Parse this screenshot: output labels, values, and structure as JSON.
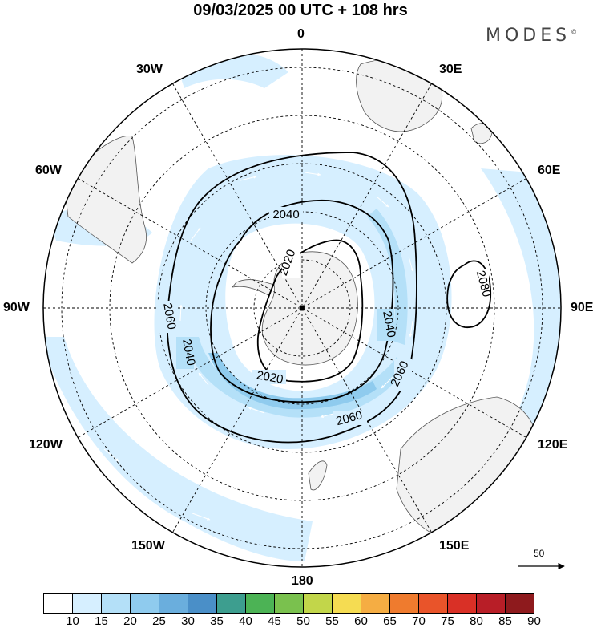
{
  "title": "09/03/2025  00 UTC  + 108 hrs",
  "brand": "MODES",
  "brand_mark": "©",
  "longitude_labels": {
    "lon_0": "0",
    "lon_30e": "30E",
    "lon_60e": "60E",
    "lon_90e": "90E",
    "lon_120e": "120E",
    "lon_150e": "150E",
    "lon_180": "180",
    "lon_150w": "150W",
    "lon_120w": "120W",
    "lon_90w": "90W",
    "lon_60w": "60W",
    "lon_30w": "30W"
  },
  "contour_labels": [
    "2020",
    "2020",
    "2040",
    "2040",
    "2040",
    "2060",
    "2060",
    "2060",
    "2080"
  ],
  "wind_scale": {
    "value": "50"
  },
  "colorbar": {
    "labels": [
      "10",
      "15",
      "20",
      "25",
      "30",
      "35",
      "40",
      "45",
      "50",
      "55",
      "60",
      "65",
      "70",
      "75",
      "80",
      "85",
      "90"
    ],
    "colors": [
      "#ffffff",
      "#d6efff",
      "#b4e0f8",
      "#8fcbee",
      "#6aaedd",
      "#4a8fc8",
      "#3d9e8f",
      "#4cb355",
      "#7ac14e",
      "#c2d64a",
      "#f5dc52",
      "#f5ad43",
      "#ef7b2e",
      "#e9542a",
      "#d93026",
      "#b81e27",
      "#8e1a1d"
    ]
  },
  "colors": {
    "land": "#f2f2f2",
    "wind_light": "#d6efff",
    "wind_mid": "#b4e0f8",
    "wind_strong": "#8fcbee",
    "contour": "#000000"
  }
}
